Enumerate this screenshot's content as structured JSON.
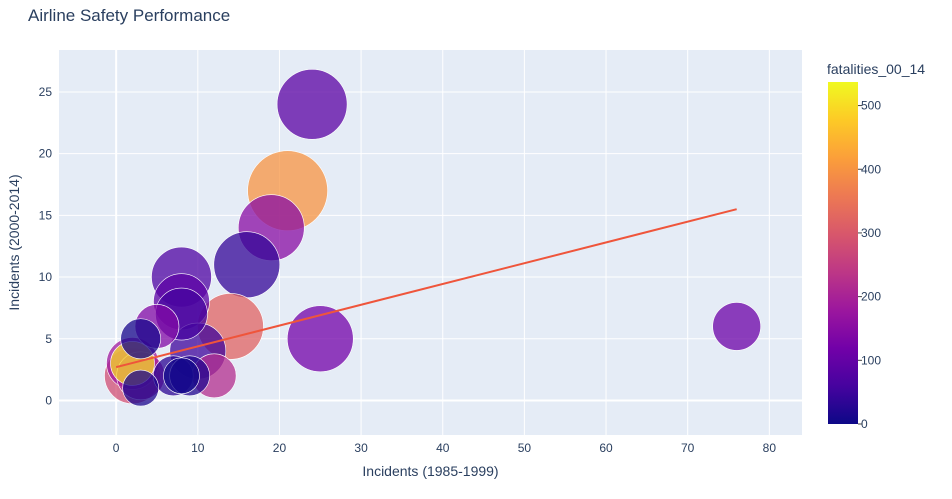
{
  "chart_data": {
    "type": "scatter",
    "title": "Airline Safety Performance",
    "xlabel": "Incidents (1985-1999)",
    "ylabel": "Incidents (2000-2014)",
    "xlim": [
      -7,
      84
    ],
    "ylim": [
      -2.8,
      28.4
    ],
    "xticks": [
      0,
      10,
      20,
      30,
      40,
      50,
      60,
      70,
      80
    ],
    "yticks": [
      0,
      5,
      10,
      15,
      20,
      25
    ],
    "grid": true,
    "colorbar": {
      "title": "fatalities_00_14",
      "range": [
        0,
        537
      ],
      "ticks": [
        0,
        100,
        200,
        300,
        400,
        500
      ],
      "colorscale": [
        "#0d0887",
        "#46039f",
        "#7201a8",
        "#9c179e",
        "#bd3786",
        "#d8576b",
        "#ed7953",
        "#fb9f3a",
        "#fdca26",
        "#f0f921"
      ]
    },
    "trendline": {
      "x": [
        0,
        76
      ],
      "y": [
        2.7,
        15.5
      ],
      "color": "#ef553b"
    },
    "points": [
      {
        "x": 24,
        "y": 24,
        "size": 35,
        "fatalities": 85
      },
      {
        "x": 21,
        "y": 17,
        "size": 40,
        "fatalities": 400
      },
      {
        "x": 19,
        "y": 14,
        "size": 33,
        "fatalities": 150
      },
      {
        "x": 16,
        "y": 11,
        "size": 33,
        "fatalities": 40
      },
      {
        "x": 8,
        "y": 10,
        "size": 30,
        "fatalities": 70
      },
      {
        "x": 14,
        "y": 6,
        "size": 33,
        "fatalities": 320
      },
      {
        "x": 25,
        "y": 5,
        "size": 33,
        "fatalities": 120
      },
      {
        "x": 76,
        "y": 6,
        "size": 24,
        "fatalities": 110
      },
      {
        "x": 8,
        "y": 8,
        "size": 28,
        "fatalities": 90
      },
      {
        "x": 8,
        "y": 7,
        "size": 26,
        "fatalities": 60
      },
      {
        "x": 10,
        "y": 4,
        "size": 28,
        "fatalities": 50
      },
      {
        "x": 5,
        "y": 6,
        "size": 22,
        "fatalities": 140
      },
      {
        "x": 3,
        "y": 5,
        "size": 20,
        "fatalities": 10
      },
      {
        "x": 12,
        "y": 2,
        "size": 22,
        "fatalities": 220
      },
      {
        "x": 2,
        "y": 3,
        "size": 22,
        "fatalities": 500
      },
      {
        "x": 2,
        "y": 3,
        "size": 26,
        "fatalities": 180
      },
      {
        "x": 2,
        "y": 2,
        "size": 28,
        "fatalities": 280
      },
      {
        "x": 3,
        "y": 2,
        "size": 24,
        "fatalities": 200
      },
      {
        "x": 7,
        "y": 2,
        "size": 20,
        "fatalities": 30
      },
      {
        "x": 9,
        "y": 2,
        "size": 20,
        "fatalities": 20
      },
      {
        "x": 8,
        "y": 2,
        "size": 18,
        "fatalities": 5
      },
      {
        "x": 3,
        "y": 1,
        "size": 18,
        "fatalities": 15
      }
    ]
  }
}
